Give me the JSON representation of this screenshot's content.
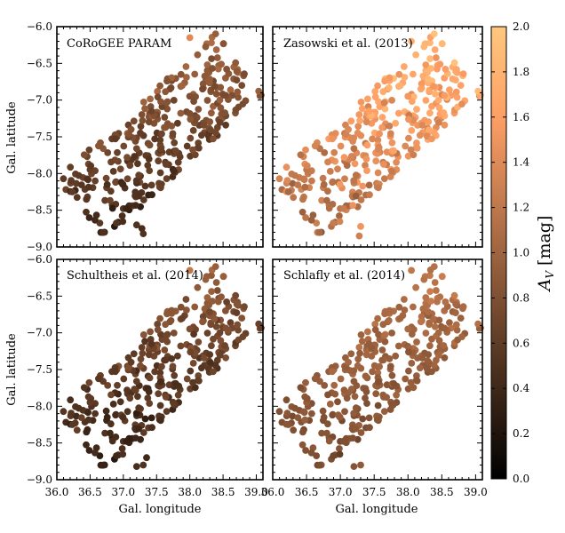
{
  "chart_data": {
    "type": "scatter",
    "figure": "Four-panel scatter map of CoRoGEE targets coloured by extinction A_V",
    "x_label": "Gal. longitude",
    "y_label": "Gal. latitude",
    "xlim": [
      36.0,
      39.1
    ],
    "ylim": [
      -9.0,
      -6.0
    ],
    "x_ticks": [
      36.0,
      36.5,
      37.0,
      37.5,
      38.0,
      38.5,
      39.0
    ],
    "x_tick_labels": [
      "36.0",
      "36.5",
      "37.0",
      "37.5",
      "38.0",
      "38.5",
      "39.0"
    ],
    "y_ticks": [
      -6.0,
      -6.5,
      -7.0,
      -7.5,
      -8.0,
      -8.5,
      -9.0
    ],
    "y_tick_labels": [
      "−6.0",
      "−6.5",
      "−7.0",
      "−7.5",
      "−8.0",
      "−8.5",
      "−9.0"
    ],
    "colorbar": {
      "label": "A_V [mag]",
      "label_main": "A",
      "label_sub": "V",
      "label_unit": "[mag]",
      "colormap": "copper",
      "range": [
        0.0,
        2.0
      ],
      "ticks": [
        0.0,
        0.2,
        0.4,
        0.6,
        0.8,
        1.0,
        1.2,
        1.4,
        1.6,
        1.8,
        2.0
      ],
      "tick_labels": [
        "0.0",
        "0.2",
        "0.4",
        "0.6",
        "0.8",
        "1.0",
        "1.2",
        "1.4",
        "1.6",
        "1.8",
        "2.0"
      ]
    },
    "panels": [
      {
        "title": "CoRoGEE PARAM",
        "seed": 11,
        "color_trend": {
          "base": 0.72,
          "dir_coef": 0.22,
          "perp_coef": 0.12,
          "noise": 0.22
        },
        "extra_points": [
          {
            "l": 38.0,
            "b": -6.15,
            "av": 1.4
          },
          {
            "l": 37.28,
            "b": -8.75,
            "av": 0.45
          },
          {
            "l": 37.3,
            "b": -8.82,
            "av": 0.48
          },
          {
            "l": 37.2,
            "b": -8.7,
            "av": 0.5
          }
        ]
      },
      {
        "title": "Zasowski et al. (2013)",
        "seed": 23,
        "color_trend": {
          "base": 1.45,
          "dir_coef": 0.3,
          "perp_coef": 0.1,
          "noise": 0.32
        },
        "extra_points": [
          {
            "l": 38.05,
            "b": -6.2,
            "av": 1.8
          },
          {
            "l": 37.28,
            "b": -8.85,
            "av": 1.3
          },
          {
            "l": 37.3,
            "b": -8.72,
            "av": 1.5
          }
        ]
      },
      {
        "title": "Schultheis et al. (2014)",
        "seed": 37,
        "color_trend": {
          "base": 0.62,
          "dir_coef": 0.22,
          "perp_coef": 0.12,
          "noise": 0.2
        },
        "extra_points": [
          {
            "l": 38.0,
            "b": -6.15,
            "av": 1.2
          },
          {
            "l": 37.3,
            "b": -8.8,
            "av": 0.5
          },
          {
            "l": 37.2,
            "b": -8.82,
            "av": 0.45
          },
          {
            "l": 37.35,
            "b": -8.7,
            "av": 0.4
          }
        ]
      },
      {
        "title": "Schlafly et al. (2014)",
        "seed": 53,
        "color_trend": {
          "base": 0.95,
          "dir_coef": 0.15,
          "perp_coef": 0.08,
          "noise": 0.15
        },
        "extra_points": [
          {
            "l": 38.05,
            "b": -6.15,
            "av": 1.2
          },
          {
            "l": 37.3,
            "b": -8.8,
            "av": 0.9
          },
          {
            "l": 37.2,
            "b": -8.82,
            "av": 0.85
          }
        ]
      }
    ],
    "point_cloud": {
      "n_points": 330,
      "center": {
        "l": 37.55,
        "b": -7.5
      },
      "axis_direction": {
        "dl": 1.0,
        "db": 0.83
      },
      "half_length_deg": 1.55,
      "half_width_deg": 0.55
    }
  }
}
